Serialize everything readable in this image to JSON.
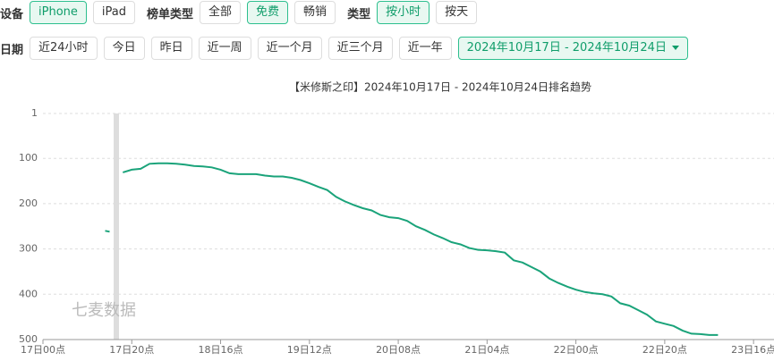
{
  "filters": [
    {
      "label": "设备",
      "options": [
        {
          "text": "iPhone",
          "selected": true
        },
        {
          "text": "iPad",
          "selected": false
        }
      ]
    },
    {
      "label": "榜单类型",
      "options": [
        {
          "text": "全部",
          "selected": false
        },
        {
          "text": "免费",
          "selected": true
        },
        {
          "text": "畅销",
          "selected": false
        }
      ]
    },
    {
      "label": "类型",
      "options": [
        {
          "text": "按小时",
          "selected": true
        },
        {
          "text": "按天",
          "selected": false
        }
      ]
    },
    {
      "label": "日期",
      "options": [
        {
          "text": "近24小时",
          "selected": false
        },
        {
          "text": "今日",
          "selected": false
        },
        {
          "text": "昨日",
          "selected": false
        },
        {
          "text": "近一周",
          "selected": false
        },
        {
          "text": "近一个月",
          "selected": false
        },
        {
          "text": "近三个月",
          "selected": false
        },
        {
          "text": "近一年",
          "selected": false
        },
        {
          "text": "2024年10月17日 - 2024年10月24日",
          "selected": true,
          "dropdown": true
        }
      ]
    }
  ],
  "chart_data": {
    "type": "line",
    "title": "【米修斯之印】2024年10月17日 - 2024年10月24日排名趋势",
    "watermark": "七麦数据",
    "x": [
      14,
      15,
      16,
      18,
      20,
      22,
      24,
      26,
      28,
      30,
      32,
      34,
      36,
      38,
      40,
      42,
      44,
      46,
      48,
      50,
      52,
      54,
      56,
      58,
      60,
      62,
      64,
      66,
      68,
      70,
      72,
      74,
      76,
      78,
      80,
      82,
      84,
      86,
      88,
      90,
      92,
      94,
      96,
      98,
      100,
      102,
      104,
      106,
      108,
      110,
      112,
      114,
      116,
      118,
      120,
      122,
      124,
      126,
      128,
      130,
      132,
      134,
      136,
      138,
      140,
      142,
      144,
      146,
      148,
      150,
      152
    ],
    "series": [
      {
        "name": "排名",
        "color": "#1aa37a",
        "values": [
          260,
          262,
          null,
          131,
          125,
          123,
          112,
          111,
          111,
          112,
          114,
          117,
          118,
          120,
          125,
          133,
          135,
          135,
          135,
          138,
          140,
          140,
          143,
          148,
          155,
          163,
          170,
          185,
          195,
          203,
          210,
          215,
          225,
          230,
          232,
          238,
          250,
          258,
          268,
          276,
          285,
          290,
          298,
          302,
          303,
          305,
          308,
          325,
          330,
          340,
          350,
          365,
          375,
          383,
          390,
          395,
          398,
          400,
          405,
          420,
          425,
          435,
          445,
          460,
          465,
          470,
          480,
          487,
          488,
          490,
          490
        ]
      }
    ],
    "xlim": [
      0,
      164
    ],
    "xticks": [
      {
        "value": 0,
        "label": "17日00点"
      },
      {
        "value": 20,
        "label": "17日20点"
      },
      {
        "value": 40,
        "label": "18日16点"
      },
      {
        "value": 60,
        "label": "19日12点"
      },
      {
        "value": 80,
        "label": "20日08点"
      },
      {
        "value": 100,
        "label": "21日04点"
      },
      {
        "value": 120,
        "label": "22日00点"
      },
      {
        "value": 140,
        "label": "22日20点"
      },
      {
        "value": 160,
        "label": "23日16点"
      }
    ],
    "ylim": [
      1,
      500
    ],
    "y_inverted": true,
    "yticks": [
      1,
      100,
      200,
      300,
      400,
      500
    ],
    "grid": true
  }
}
